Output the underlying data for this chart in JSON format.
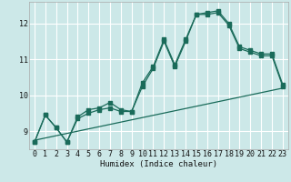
{
  "title": "",
  "xlabel": "Humidex (Indice chaleur)",
  "bg_color": "#cce8e8",
  "grid_color": "#ffffff",
  "line_color": "#1a6b5a",
  "xlim": [
    -0.5,
    23.5
  ],
  "ylim": [
    8.5,
    12.6
  ],
  "yticks": [
    9,
    10,
    11,
    12
  ],
  "xticks": [
    0,
    1,
    2,
    3,
    4,
    5,
    6,
    7,
    8,
    9,
    10,
    11,
    12,
    13,
    14,
    15,
    16,
    17,
    18,
    19,
    20,
    21,
    22,
    23
  ],
  "line1_x": [
    0,
    1,
    2,
    3,
    4,
    5,
    6,
    7,
    8,
    9,
    10,
    11,
    12,
    13,
    14,
    15,
    16,
    17,
    18,
    19,
    20,
    21,
    22,
    23
  ],
  "line1_y": [
    8.7,
    9.45,
    9.1,
    8.7,
    9.4,
    9.6,
    9.65,
    9.8,
    9.6,
    9.55,
    10.35,
    10.8,
    11.55,
    10.85,
    11.55,
    12.25,
    12.3,
    12.35,
    12.0,
    11.35,
    11.25,
    11.15,
    11.15,
    10.3
  ],
  "line2_x": [
    0,
    1,
    2,
    3,
    4,
    5,
    6,
    7,
    8,
    9,
    10,
    11,
    12,
    13,
    14,
    15,
    16,
    17,
    18,
    19,
    20,
    21,
    22,
    23
  ],
  "line2_y": [
    8.7,
    9.45,
    9.1,
    8.7,
    9.35,
    9.5,
    9.6,
    9.65,
    9.55,
    9.55,
    10.25,
    10.75,
    11.5,
    10.8,
    11.5,
    12.25,
    12.25,
    12.3,
    11.95,
    11.3,
    11.2,
    11.1,
    11.1,
    10.25
  ],
  "line3_x": [
    0,
    23
  ],
  "line3_y": [
    8.75,
    10.2
  ],
  "markersize": 2.5,
  "linewidth": 0.9
}
